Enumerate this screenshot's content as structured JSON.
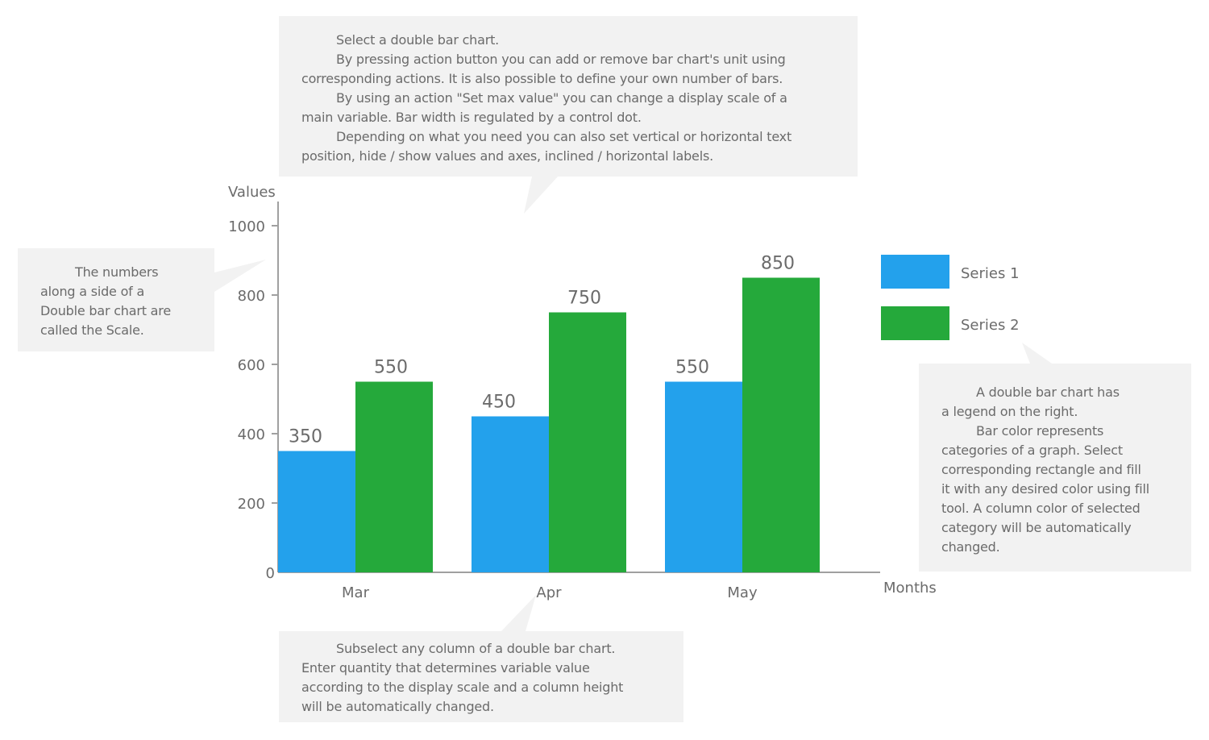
{
  "chart_data": {
    "type": "bar",
    "title": "",
    "xlabel": "Months",
    "ylabel": "Values",
    "ylim": [
      0,
      1000
    ],
    "yticks": [
      0,
      200,
      400,
      600,
      800,
      1000
    ],
    "categories": [
      "Mar",
      "Apr",
      "May"
    ],
    "series": [
      {
        "name": "Series 1",
        "values": [
          350,
          450,
          550
        ],
        "color": "#23a1ec"
      },
      {
        "name": "Series 2",
        "values": [
          550,
          750,
          850
        ],
        "color": "#25a93b"
      }
    ],
    "legend": "right",
    "grid": false,
    "data_labels": true
  },
  "notes": {
    "top": [
      [
        "Select a double bar chart."
      ],
      [
        "By pressing action button you can add or remove bar chart's unit using",
        "corresponding actions. It is also possible to define your own number of bars."
      ],
      [
        "By using an action \"Set max value\" you can change a display scale of a",
        "main variable. Bar width is regulated by a control dot."
      ],
      [
        "Depending on what you need you can also set vertical or horizontal text",
        "position, hide / show values and axes, inclined / horizontal labels."
      ]
    ],
    "left": [
      [
        "The numbers",
        "along a side of a",
        "Double bar chart are",
        "called the Scale."
      ]
    ],
    "right": [
      [
        "A double bar chart has",
        "a legend on the right."
      ],
      [
        "Bar color represents",
        "categories of a graph. Select",
        "corresponding rectangle and fill",
        "it with any desired color using fill",
        "tool. A column color of selected",
        "category will be automatically",
        "changed."
      ]
    ],
    "bottom": [
      [
        "Subselect any column of a double bar chart.",
        "Enter quantity that determines variable value",
        "according to the display scale and a column height",
        "will be automatically changed."
      ]
    ]
  }
}
